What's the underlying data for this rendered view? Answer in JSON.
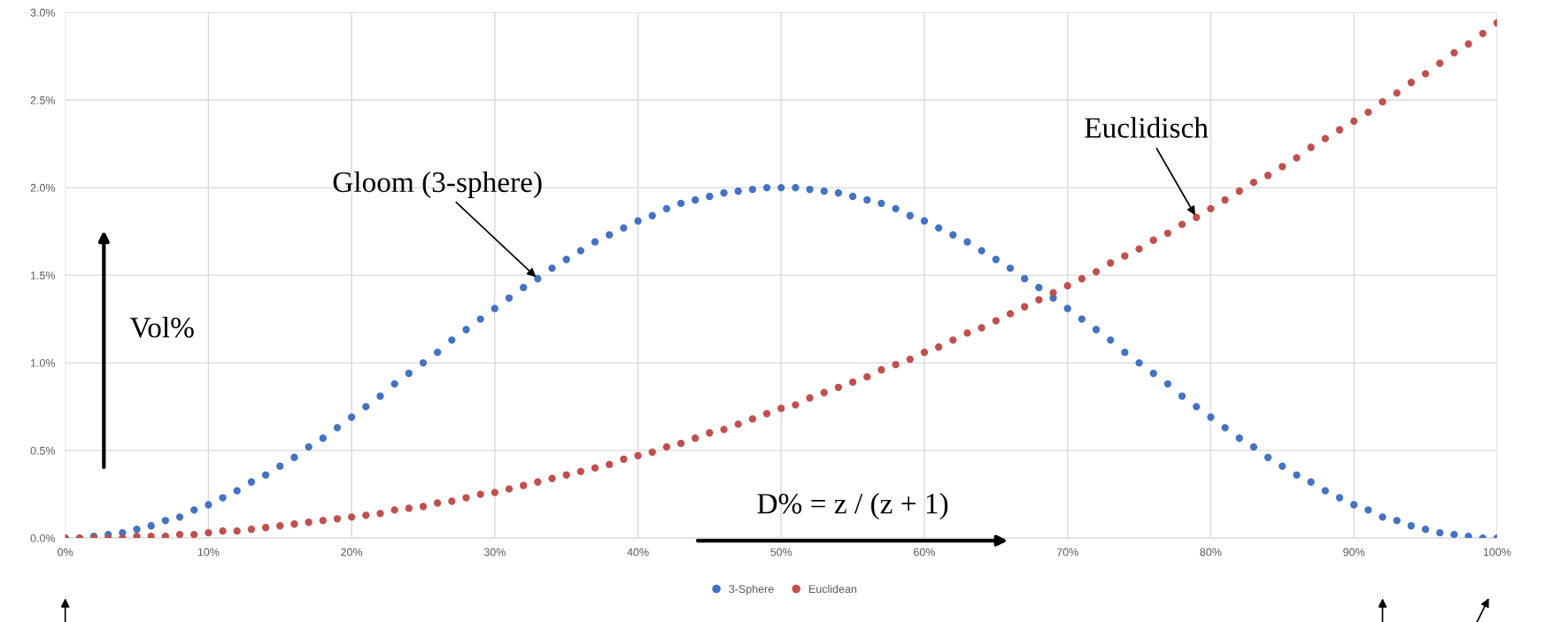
{
  "chart_data": {
    "type": "scatter",
    "x": [
      0,
      1,
      2,
      3,
      4,
      5,
      6,
      7,
      8,
      9,
      10,
      11,
      12,
      13,
      14,
      15,
      16,
      17,
      18,
      19,
      20,
      21,
      22,
      23,
      24,
      25,
      26,
      27,
      28,
      29,
      30,
      31,
      32,
      33,
      34,
      35,
      36,
      37,
      38,
      39,
      40,
      41,
      42,
      43,
      44,
      45,
      46,
      47,
      48,
      49,
      50,
      51,
      52,
      53,
      54,
      55,
      56,
      57,
      58,
      59,
      60,
      61,
      62,
      63,
      64,
      65,
      66,
      67,
      68,
      69,
      70,
      71,
      72,
      73,
      74,
      75,
      76,
      77,
      78,
      79,
      80,
      81,
      82,
      83,
      84,
      85,
      86,
      87,
      88,
      89,
      90,
      91,
      92,
      93,
      94,
      95,
      96,
      97,
      98,
      99,
      100
    ],
    "series": [
      {
        "name": "3-Sphere",
        "color": "#4472c4",
        "values": [
          0,
          0.0,
          0.01,
          0.02,
          0.03,
          0.05,
          0.07,
          0.1,
          0.12,
          0.16,
          0.19,
          0.23,
          0.27,
          0.32,
          0.36,
          0.41,
          0.46,
          0.52,
          0.57,
          0.63,
          0.69,
          0.75,
          0.81,
          0.88,
          0.94,
          1.0,
          1.06,
          1.13,
          1.19,
          1.25,
          1.31,
          1.37,
          1.43,
          1.48,
          1.54,
          1.59,
          1.64,
          1.69,
          1.73,
          1.77,
          1.81,
          1.84,
          1.88,
          1.91,
          1.93,
          1.95,
          1.97,
          1.98,
          1.99,
          2.0,
          2.0,
          2.0,
          1.99,
          1.98,
          1.97,
          1.95,
          1.93,
          1.91,
          1.88,
          1.84,
          1.81,
          1.77,
          1.73,
          1.69,
          1.64,
          1.59,
          1.54,
          1.48,
          1.43,
          1.37,
          1.31,
          1.25,
          1.19,
          1.13,
          1.06,
          1.0,
          0.94,
          0.88,
          0.81,
          0.75,
          0.69,
          0.63,
          0.57,
          0.52,
          0.46,
          0.41,
          0.36,
          0.32,
          0.27,
          0.23,
          0.19,
          0.16,
          0.12,
          0.1,
          0.07,
          0.05,
          0.03,
          0.02,
          0.01,
          0.0,
          0
        ]
      },
      {
        "name": "Euclidean",
        "color": "#c0504d",
        "values": [
          0,
          0.0,
          0.0,
          0.0,
          0.0,
          0.01,
          0.01,
          0.01,
          0.02,
          0.02,
          0.03,
          0.04,
          0.04,
          0.05,
          0.06,
          0.07,
          0.08,
          0.09,
          0.1,
          0.11,
          0.12,
          0.13,
          0.14,
          0.16,
          0.17,
          0.18,
          0.2,
          0.21,
          0.23,
          0.25,
          0.26,
          0.28,
          0.3,
          0.32,
          0.34,
          0.36,
          0.38,
          0.4,
          0.42,
          0.45,
          0.47,
          0.49,
          0.52,
          0.54,
          0.57,
          0.6,
          0.62,
          0.65,
          0.68,
          0.71,
          0.74,
          0.76,
          0.8,
          0.83,
          0.86,
          0.89,
          0.92,
          0.96,
          0.99,
          1.02,
          1.06,
          1.09,
          1.13,
          1.17,
          1.2,
          1.24,
          1.28,
          1.32,
          1.36,
          1.4,
          1.44,
          1.48,
          1.52,
          1.57,
          1.61,
          1.65,
          1.7,
          1.74,
          1.79,
          1.83,
          1.88,
          1.93,
          1.98,
          2.03,
          2.07,
          2.12,
          2.17,
          2.23,
          2.28,
          2.33,
          2.38,
          2.43,
          2.49,
          2.54,
          2.6,
          2.65,
          2.71,
          2.77,
          2.82,
          2.88,
          2.94
        ]
      }
    ],
    "xlim": [
      0,
      100
    ],
    "xticks": [
      {
        "value": 0,
        "label": "0%"
      },
      {
        "value": 10,
        "label": "10%"
      },
      {
        "value": 20,
        "label": "20%"
      },
      {
        "value": 30,
        "label": "30%"
      },
      {
        "value": 40,
        "label": "40%"
      },
      {
        "value": 50,
        "label": "50%"
      },
      {
        "value": 60,
        "label": "60%"
      },
      {
        "value": 70,
        "label": "70%"
      },
      {
        "value": 80,
        "label": "80%"
      },
      {
        "value": 90,
        "label": "90%"
      },
      {
        "value": 100,
        "label": "100%"
      }
    ],
    "ylim": [
      0,
      3
    ],
    "yticks": [
      {
        "value": 0,
        "label": "0.0%"
      },
      {
        "value": 0.5,
        "label": "0.5%"
      },
      {
        "value": 1,
        "label": "1.0%"
      },
      {
        "value": 1.5,
        "label": "1.5%"
      },
      {
        "value": 2,
        "label": "2.0%"
      },
      {
        "value": 2.5,
        "label": "2.5%"
      },
      {
        "value": 3,
        "label": "3.0%"
      }
    ],
    "annotations": [
      {
        "text": "Gloom (3-sphere)",
        "x": 33,
        "y": 1.48
      },
      {
        "text": "Euclidisch",
        "x": 79,
        "y": 1.83
      },
      "Vol%",
      "D% = z / (z + 1)"
    ],
    "grid": true,
    "legend": "bottom",
    "marker": "circle"
  }
}
